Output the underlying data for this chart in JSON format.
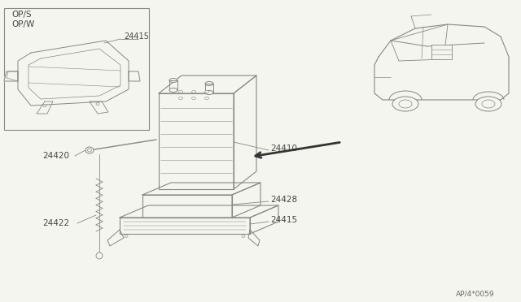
{
  "background_color": "#f5f5f0",
  "line_color": "#888880",
  "text_color": "#444444",
  "diagram_code": "AP/4*0059",
  "figsize": [
    6.4,
    3.72
  ],
  "dpi": 100
}
